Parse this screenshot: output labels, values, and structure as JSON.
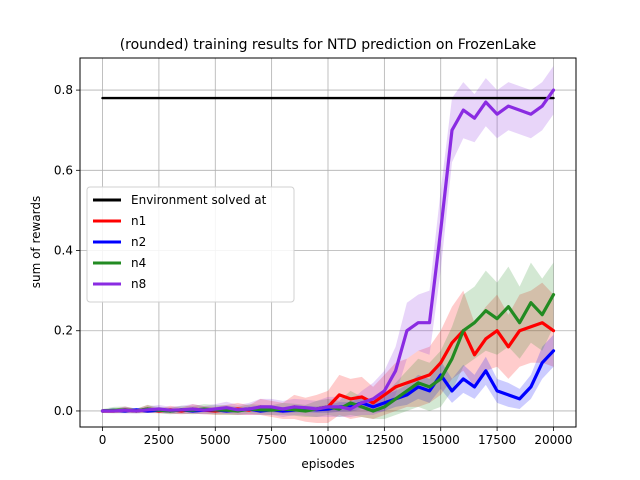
{
  "chart_data": {
    "type": "line",
    "title": "(rounded) training results for NTD prediction on FrozenLake",
    "xlabel": "episodes",
    "ylabel": "sum of rewards",
    "xlim": [
      -1000,
      21000
    ],
    "ylim": [
      -0.04,
      0.88
    ],
    "xticks": [
      0,
      2500,
      5000,
      7500,
      10000,
      12500,
      15000,
      17500,
      20000
    ],
    "xtick_labels": [
      "0",
      "2500",
      "5000",
      "7500",
      "10000",
      "12500",
      "15000",
      "17500",
      "20000"
    ],
    "yticks": [
      0.0,
      0.2,
      0.4,
      0.6,
      0.8
    ],
    "ytick_labels": [
      "0.0",
      "0.2",
      "0.4",
      "0.6",
      "0.8"
    ],
    "grid": true,
    "legend_position": "center-left",
    "x": [
      0,
      500,
      1000,
      1500,
      2000,
      2500,
      3000,
      3500,
      4000,
      4500,
      5000,
      5500,
      6000,
      6500,
      7000,
      7500,
      8000,
      8500,
      9000,
      9500,
      10000,
      10500,
      11000,
      11500,
      12000,
      12500,
      13000,
      13500,
      14000,
      14500,
      15000,
      15500,
      16000,
      16500,
      17000,
      17500,
      18000,
      18500,
      19000,
      19500,
      20000
    ],
    "series": [
      {
        "name": "Environment solved at",
        "color": "#000000",
        "shaded": false,
        "values": [
          0.78,
          0.78,
          0.78,
          0.78,
          0.78,
          0.78,
          0.78,
          0.78,
          0.78,
          0.78,
          0.78,
          0.78,
          0.78,
          0.78,
          0.78,
          0.78,
          0.78,
          0.78,
          0.78,
          0.78,
          0.78,
          0.78,
          0.78,
          0.78,
          0.78,
          0.78,
          0.78,
          0.78,
          0.78,
          0.78,
          0.78,
          0.78,
          0.78,
          0.78,
          0.78,
          0.78,
          0.78,
          0.78,
          0.78,
          0.78,
          0.78
        ]
      },
      {
        "name": "n1",
        "color": "#ff0000",
        "shaded": true,
        "values": [
          0.0,
          0.0,
          0.003,
          0.0,
          0.005,
          0.0,
          0.003,
          0.0,
          0.005,
          0.002,
          0.0,
          0.003,
          0.005,
          0.002,
          0.01,
          0.005,
          0.0,
          0.01,
          0.003,
          0.005,
          0.01,
          0.04,
          0.03,
          0.035,
          0.02,
          0.04,
          0.06,
          0.07,
          0.08,
          0.09,
          0.12,
          0.17,
          0.2,
          0.14,
          0.18,
          0.2,
          0.16,
          0.2,
          0.21,
          0.22,
          0.2
        ],
        "spread": [
          0.005,
          0.005,
          0.008,
          0.005,
          0.01,
          0.005,
          0.01,
          0.008,
          0.012,
          0.01,
          0.01,
          0.012,
          0.015,
          0.012,
          0.02,
          0.02,
          0.02,
          0.03,
          0.03,
          0.035,
          0.04,
          0.05,
          0.05,
          0.05,
          0.04,
          0.05,
          0.06,
          0.06,
          0.07,
          0.07,
          0.08,
          0.09,
          0.1,
          0.08,
          0.08,
          0.09,
          0.08,
          0.09,
          0.09,
          0.1,
          0.09
        ]
      },
      {
        "name": "n2",
        "color": "#0000ff",
        "shaded": true,
        "values": [
          0.0,
          0.002,
          0.0,
          0.003,
          0.0,
          0.002,
          0.0,
          0.003,
          0.0,
          0.002,
          0.003,
          0.0,
          0.002,
          0.005,
          0.0,
          0.003,
          0.0,
          0.002,
          0.005,
          0.003,
          0.005,
          0.01,
          0.01,
          0.02,
          0.01,
          0.02,
          0.03,
          0.04,
          0.06,
          0.05,
          0.09,
          0.05,
          0.08,
          0.06,
          0.1,
          0.05,
          0.04,
          0.03,
          0.06,
          0.12,
          0.15
        ],
        "spread": [
          0.003,
          0.004,
          0.003,
          0.004,
          0.003,
          0.004,
          0.003,
          0.004,
          0.004,
          0.004,
          0.005,
          0.004,
          0.005,
          0.006,
          0.005,
          0.006,
          0.006,
          0.006,
          0.008,
          0.008,
          0.01,
          0.012,
          0.012,
          0.015,
          0.015,
          0.02,
          0.02,
          0.025,
          0.03,
          0.03,
          0.035,
          0.03,
          0.035,
          0.03,
          0.035,
          0.03,
          0.03,
          0.025,
          0.03,
          0.04,
          0.04
        ]
      },
      {
        "name": "n4",
        "color": "#228b22",
        "shaded": true,
        "values": [
          0.0,
          0.002,
          0.003,
          0.0,
          0.005,
          0.002,
          0.0,
          0.003,
          0.002,
          0.005,
          0.003,
          0.002,
          0.0,
          0.005,
          0.003,
          0.002,
          0.005,
          0.003,
          0.0,
          0.005,
          0.01,
          0.005,
          0.02,
          0.01,
          0.0,
          0.01,
          0.03,
          0.05,
          0.07,
          0.06,
          0.08,
          0.13,
          0.2,
          0.22,
          0.25,
          0.23,
          0.26,
          0.22,
          0.27,
          0.24,
          0.29
        ],
        "spread": [
          0.005,
          0.008,
          0.008,
          0.006,
          0.01,
          0.008,
          0.008,
          0.01,
          0.01,
          0.012,
          0.012,
          0.012,
          0.01,
          0.012,
          0.012,
          0.012,
          0.015,
          0.015,
          0.015,
          0.02,
          0.02,
          0.02,
          0.03,
          0.025,
          0.02,
          0.03,
          0.04,
          0.05,
          0.06,
          0.06,
          0.07,
          0.08,
          0.09,
          0.09,
          0.1,
          0.09,
          0.1,
          0.09,
          0.1,
          0.09,
          0.08
        ]
      },
      {
        "name": "n8",
        "color": "#8a2be2",
        "shaded": true,
        "values": [
          0.0,
          0.0,
          0.002,
          0.0,
          0.003,
          0.005,
          0.002,
          0.003,
          0.005,
          0.002,
          0.005,
          0.008,
          0.003,
          0.005,
          0.01,
          0.01,
          0.005,
          0.01,
          0.008,
          0.005,
          0.01,
          0.01,
          0.005,
          0.02,
          0.03,
          0.05,
          0.1,
          0.2,
          0.22,
          0.22,
          0.45,
          0.7,
          0.75,
          0.73,
          0.77,
          0.74,
          0.76,
          0.75,
          0.74,
          0.76,
          0.8
        ],
        "spread": [
          0.005,
          0.005,
          0.008,
          0.006,
          0.008,
          0.01,
          0.008,
          0.01,
          0.012,
          0.01,
          0.012,
          0.015,
          0.012,
          0.015,
          0.02,
          0.02,
          0.02,
          0.02,
          0.02,
          0.02,
          0.025,
          0.025,
          0.02,
          0.03,
          0.04,
          0.05,
          0.06,
          0.07,
          0.07,
          0.08,
          0.1,
          0.08,
          0.07,
          0.06,
          0.06,
          0.06,
          0.06,
          0.06,
          0.06,
          0.06,
          0.06
        ]
      }
    ]
  }
}
